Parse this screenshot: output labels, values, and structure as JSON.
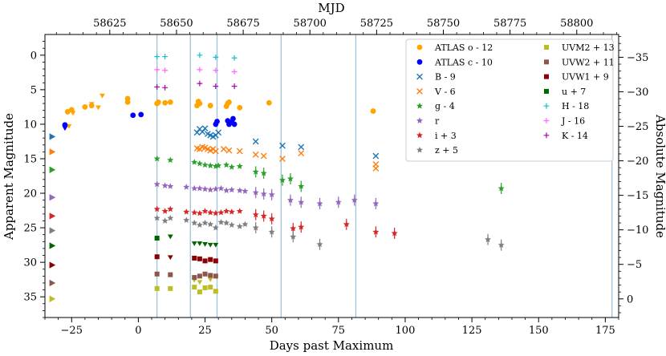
{
  "chart_data": {
    "type": "scatter",
    "title": "",
    "xlabel": "Days past Maximum",
    "ylabel": "Apparent Magnitude",
    "top_xlabel": "MJD",
    "right_ylabel": "Absolute Magnitude",
    "xlim": [
      -35,
      180
    ],
    "ylim_inverted": [
      -3,
      38
    ],
    "mjd_range": [
      58600.7,
      58815.7
    ],
    "absmag_offset": 35.3,
    "x_ticks": [
      -25,
      0,
      25,
      50,
      75,
      100,
      125,
      150,
      175
    ],
    "x_tick_labels": [
      "−25",
      "0",
      "25",
      "50",
      "75",
      "100",
      "125",
      "150",
      "175"
    ],
    "y_ticks": [
      0,
      5,
      10,
      15,
      20,
      25,
      30,
      35
    ],
    "y_tick_labels": [
      "0",
      "5",
      "10",
      "15",
      "20",
      "25",
      "30",
      "35"
    ],
    "mjd_ticks": [
      58625,
      58650,
      58675,
      58700,
      58725,
      58750,
      58775,
      58800
    ],
    "mjd_tick_labels": [
      "58625",
      "58650",
      "58675",
      "58700",
      "58725",
      "58750",
      "58775",
      "58800"
    ],
    "abs_ticks": [
      -35,
      -30,
      -25,
      -20,
      -15,
      -10,
      -5,
      0
    ],
    "abs_tick_labels": [
      "−35",
      "−30",
      "−25",
      "−20",
      "−15",
      "−10",
      "−5",
      "0"
    ],
    "vlines": [
      7,
      19.5,
      29.5,
      53.5,
      81.5,
      177.5
    ],
    "vline_color": "#9ec3dc",
    "legend_position": "top-right",
    "series": [
      {
        "name": "ATLAS o - 12",
        "color": "#ffa500",
        "marker": "circle",
        "points": [
          [
            -26.5,
            8.2
          ],
          [
            -25,
            7.9
          ],
          [
            -20,
            7.5
          ],
          [
            -17.5,
            7.3
          ],
          [
            -4,
            6.8
          ],
          [
            -4,
            6.3
          ],
          [
            7,
            7.0
          ],
          [
            7.5,
            6.8
          ],
          [
            10,
            6.9
          ],
          [
            12,
            6.8
          ],
          [
            22,
            7.3
          ],
          [
            22.5,
            6.7
          ],
          [
            23,
            7.0
          ],
          [
            27,
            7.3
          ],
          [
            33,
            7.4
          ],
          [
            33.5,
            7.0
          ],
          [
            34,
            6.8
          ],
          [
            38,
            7.6
          ],
          [
            49,
            6.9
          ],
          [
            88,
            8.1
          ]
        ],
        "ul": [
          [
            -26,
            10.3
          ],
          [
            -24.5,
            8.4
          ],
          [
            -20,
            7.6
          ],
          [
            -17.5,
            7.1
          ],
          [
            -15,
            7.6
          ],
          [
            -13.5,
            5.9
          ]
        ]
      },
      {
        "name": "ATLAS c - 10",
        "color": "#0000ff",
        "marker": "circle",
        "points": [
          [
            -27.5,
            10.1
          ],
          [
            -2,
            8.7
          ],
          [
            1,
            8.6
          ],
          [
            29,
            10.0
          ],
          [
            29.5,
            9.6
          ],
          [
            33.5,
            9.5
          ],
          [
            34,
            10.0
          ],
          [
            35,
            9.7
          ],
          [
            35.5,
            9.2
          ],
          [
            36,
            10.0
          ]
        ],
        "ul": [
          [
            -27.5,
            10.6
          ]
        ]
      },
      {
        "name": "B - 9",
        "color": "#1f77b4",
        "marker": "x",
        "points": [
          [
            22,
            11.2
          ],
          [
            23,
            10.7
          ],
          [
            24,
            11.1
          ],
          [
            25,
            10.6
          ],
          [
            26,
            11.4
          ],
          [
            27,
            11.6
          ],
          [
            28,
            11.8
          ],
          [
            29,
            11.6
          ],
          [
            30,
            11.2
          ],
          [
            44,
            12.5
          ],
          [
            54,
            13.1
          ],
          [
            61,
            13.3
          ],
          [
            89,
            14.6
          ]
        ]
      },
      {
        "name": "V - 6",
        "color": "#ff7f0e",
        "marker": "x",
        "points": [
          [
            22,
            13.5
          ],
          [
            23,
            13.6
          ],
          [
            24,
            13.3
          ],
          [
            25,
            13.4
          ],
          [
            26,
            13.6
          ],
          [
            27,
            13.8
          ],
          [
            28,
            13.6
          ],
          [
            29,
            13.9
          ],
          [
            32,
            13.6
          ],
          [
            34,
            13.8
          ],
          [
            38,
            13.9
          ],
          [
            44,
            14.4
          ],
          [
            47,
            14.6
          ],
          [
            54,
            15.0
          ],
          [
            61,
            14.2
          ],
          [
            89,
            15.8
          ],
          [
            89,
            16.4
          ]
        ]
      },
      {
        "name": "g - 4",
        "color": "#2ca02c",
        "marker": "star",
        "points": [
          [
            7,
            15.0
          ],
          [
            12,
            15.2
          ],
          [
            21,
            15.5
          ],
          [
            23,
            15.7
          ],
          [
            25,
            15.9
          ],
          [
            27,
            16.0
          ],
          [
            29,
            16.1
          ],
          [
            30,
            16.0
          ],
          [
            33,
            15.9
          ],
          [
            35,
            16.2
          ],
          [
            38,
            16.1
          ],
          [
            44,
            16.9
          ],
          [
            47,
            17.1
          ],
          [
            54,
            18.1
          ],
          [
            57,
            17.9
          ],
          [
            61,
            19.0
          ],
          [
            136,
            19.3
          ]
        ]
      },
      {
        "name": "r",
        "color": "#9467bd",
        "marker": "star",
        "points": [
          [
            7,
            18.7
          ],
          [
            10,
            18.9
          ],
          [
            12,
            19.0
          ],
          [
            18,
            19.1
          ],
          [
            21,
            19.3
          ],
          [
            23,
            19.3
          ],
          [
            25,
            19.4
          ],
          [
            27,
            19.5
          ],
          [
            29,
            19.4
          ],
          [
            31,
            19.3
          ],
          [
            33,
            19.6
          ],
          [
            35,
            19.5
          ],
          [
            38,
            19.6
          ],
          [
            40,
            19.7
          ],
          [
            44,
            19.9
          ],
          [
            47,
            20.1
          ],
          [
            50,
            20.2
          ],
          [
            57,
            21.0
          ],
          [
            61,
            21.3
          ],
          [
            68,
            21.5
          ],
          [
            75,
            21.3
          ],
          [
            81,
            21.0
          ],
          [
            89,
            21.5
          ]
        ]
      },
      {
        "name": "i + 3",
        "color": "#d62728",
        "marker": "star",
        "points": [
          [
            7,
            22.3
          ],
          [
            10,
            22.6
          ],
          [
            12,
            22.3
          ],
          [
            18,
            22.7
          ],
          [
            21,
            22.8
          ],
          [
            23,
            22.9
          ],
          [
            25,
            22.6
          ],
          [
            27,
            22.8
          ],
          [
            29,
            22.9
          ],
          [
            31,
            22.8
          ],
          [
            33,
            22.6
          ],
          [
            35,
            22.7
          ],
          [
            38,
            22.6
          ],
          [
            44,
            23.1
          ],
          [
            47,
            23.3
          ],
          [
            50,
            23.7
          ],
          [
            58,
            25.1
          ],
          [
            61,
            24.9
          ],
          [
            78,
            24.5
          ],
          [
            89,
            25.6
          ],
          [
            96,
            25.8
          ]
        ]
      },
      {
        "name": "z + 5",
        "color": "#7f7f7f",
        "marker": "star",
        "points": [
          [
            7,
            23.6
          ],
          [
            10,
            24.0
          ],
          [
            12,
            23.6
          ],
          [
            18,
            23.9
          ],
          [
            21,
            24.3
          ],
          [
            23,
            24.6
          ],
          [
            25,
            24.3
          ],
          [
            27,
            24.5
          ],
          [
            29,
            25.0
          ],
          [
            31,
            24.2
          ],
          [
            33,
            24.3
          ],
          [
            35,
            24.6
          ],
          [
            38,
            24.8
          ],
          [
            40,
            24.5
          ],
          [
            44,
            25.0
          ],
          [
            50,
            25.6
          ],
          [
            58,
            26.3
          ],
          [
            68,
            27.4
          ],
          [
            131,
            26.7
          ],
          [
            136,
            27.5
          ]
        ]
      },
      {
        "name": "UVM2 + 13",
        "color": "#bcbd22",
        "marker": "square",
        "points": [
          [
            7,
            33.8
          ],
          [
            12,
            33.8
          ],
          [
            21,
            33.6
          ],
          [
            23,
            34.3
          ],
          [
            25,
            33.7
          ],
          [
            27,
            33.6
          ],
          [
            29,
            34.2
          ]
        ],
        "ul": [
          [
            21,
            32.6
          ],
          [
            23,
            32.9
          ],
          [
            27,
            32.5
          ]
        ]
      },
      {
        "name": "UVW2 + 11",
        "color": "#8c564b",
        "marker": "square",
        "points": [
          [
            7,
            31.7
          ],
          [
            12,
            31.8
          ],
          [
            21,
            32.2
          ],
          [
            23,
            32.0
          ],
          [
            25,
            31.7
          ],
          [
            27,
            31.9
          ],
          [
            29,
            32.0
          ]
        ]
      },
      {
        "name": "UVW1 + 9",
        "color": "#8b0000",
        "marker": "square",
        "points": [
          [
            7,
            29.2
          ],
          [
            21,
            29.4
          ],
          [
            23,
            29.5
          ],
          [
            25,
            29.8
          ],
          [
            27,
            29.6
          ],
          [
            29,
            29.8
          ]
        ],
        "ul": [
          [
            12,
            29.3
          ]
        ]
      },
      {
        "name": "u + 7",
        "color": "#006400",
        "marker": "square",
        "points": [
          [
            7,
            26.5
          ]
        ],
        "ul": [
          [
            12,
            26.3
          ],
          [
            21,
            27.3
          ],
          [
            23,
            27.3
          ],
          [
            25,
            27.4
          ],
          [
            27,
            27.5
          ],
          [
            29,
            27.5
          ]
        ]
      },
      {
        "name": "H - 18",
        "color": "#17becf",
        "marker": "plus",
        "points": [
          [
            7,
            0.2
          ],
          [
            10,
            0.2
          ],
          [
            23,
            0.0
          ],
          [
            29,
            0.3
          ],
          [
            36,
            0.4
          ]
        ]
      },
      {
        "name": "J - 16",
        "color": "#ff66ff",
        "marker": "plus",
        "points": [
          [
            7,
            2.1
          ],
          [
            10,
            2.2
          ],
          [
            23,
            2.1
          ],
          [
            29,
            2.2
          ],
          [
            36,
            2.4
          ]
        ]
      },
      {
        "name": "K - 14",
        "color": "#aa00aa",
        "marker": "plus",
        "points": [
          [
            7,
            4.6
          ],
          [
            10,
            4.7
          ],
          [
            23,
            4.1
          ],
          [
            29,
            4.5
          ],
          [
            36,
            4.5
          ]
        ]
      }
    ],
    "offscreen_markers": [
      {
        "y": 11.8,
        "color": "#1f77b4"
      },
      {
        "y": 14.0,
        "color": "#ff7f0e"
      },
      {
        "y": 16.6,
        "color": "#2ca02c"
      },
      {
        "y": 20.6,
        "color": "#9467bd"
      },
      {
        "y": 23.3,
        "color": "#d62728"
      },
      {
        "y": 25.4,
        "color": "#7f7f7f"
      },
      {
        "y": 27.6,
        "color": "#006400"
      },
      {
        "y": 30.4,
        "color": "#8b0000"
      },
      {
        "y": 33.0,
        "color": "#8c564b"
      },
      {
        "y": 35.3,
        "color": "#bcbd22"
      }
    ]
  }
}
